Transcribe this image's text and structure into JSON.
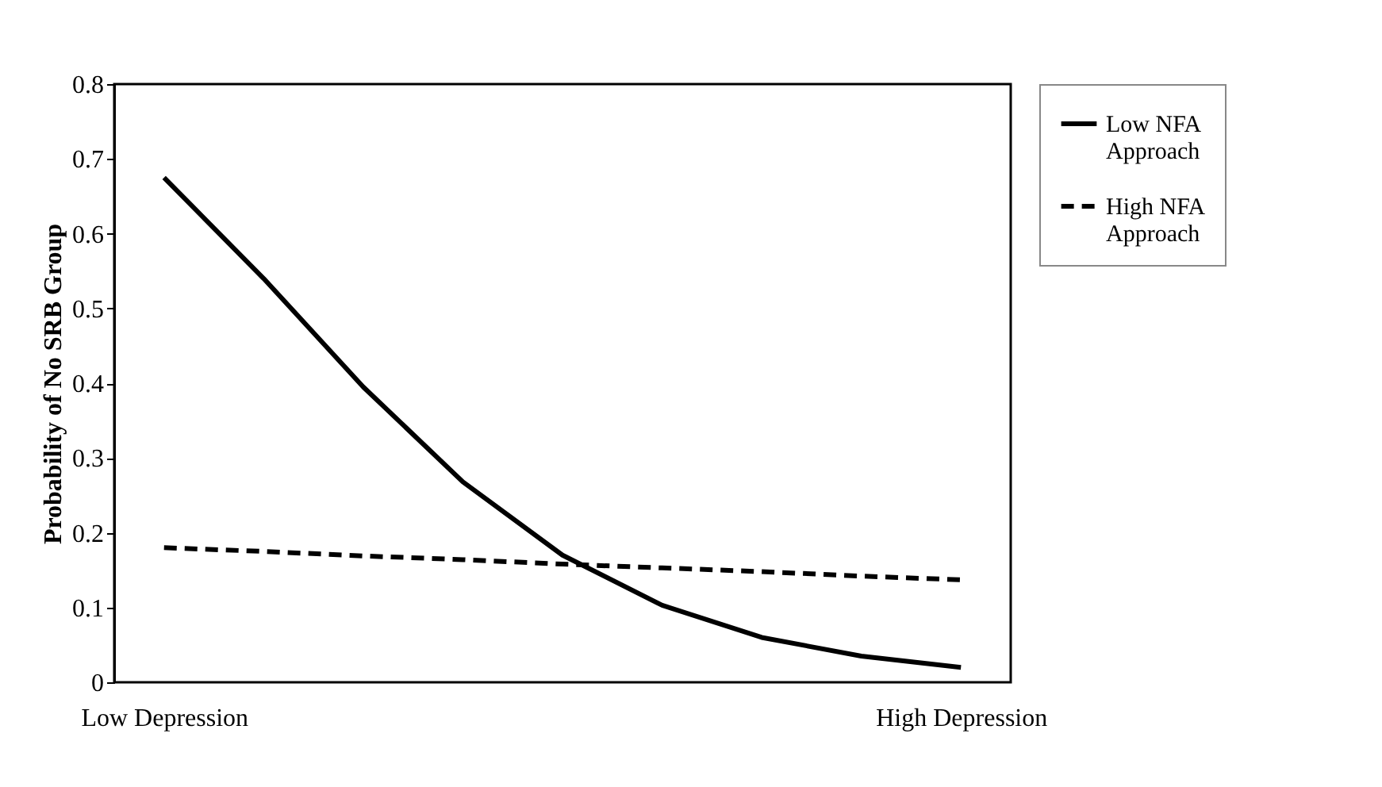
{
  "chart_data": {
    "type": "line",
    "ylabel": "Probability of No SRB Group",
    "categories": [
      "Low Depression",
      null,
      null,
      null,
      null,
      null,
      null,
      null,
      "High Depression"
    ],
    "series": [
      {
        "name": "Low NFA Approach",
        "color": "#000000",
        "line_style": "solid",
        "values": [
          0.675,
          0.54,
          0.395,
          0.268,
          0.17,
          0.103,
          0.06,
          0.035,
          0.02
        ]
      },
      {
        "name": "High NFA Approach",
        "color": "#000000",
        "line_style": "dashed",
        "values": [
          0.18,
          0.175,
          0.169,
          0.164,
          0.158,
          0.153,
          0.148,
          0.142,
          0.137
        ]
      }
    ],
    "ylim": [
      0,
      0.8
    ],
    "yticks": [
      0,
      0.1,
      0.2,
      0.3,
      0.4,
      0.5,
      0.6,
      0.7,
      0.8
    ],
    "grid": false,
    "legend": "right",
    "marker": "none"
  }
}
